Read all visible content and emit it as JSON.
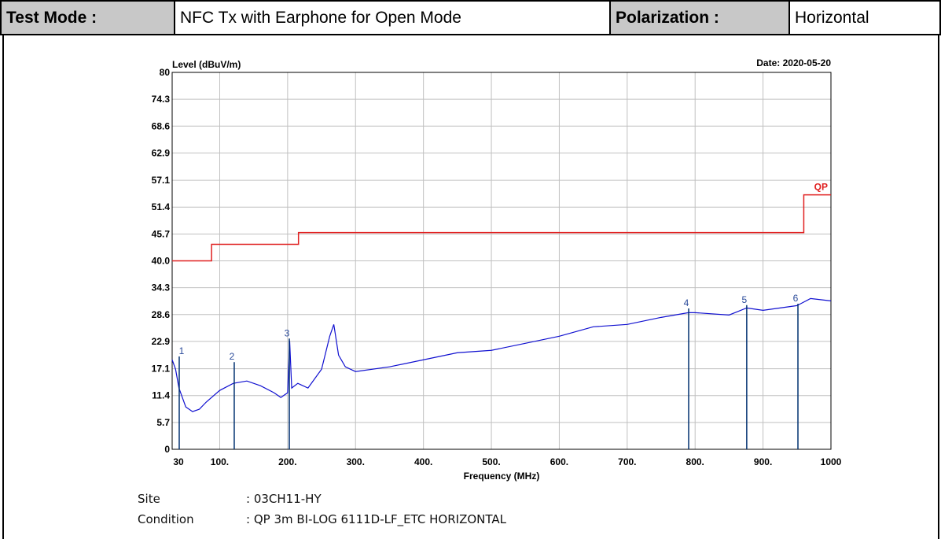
{
  "header": {
    "cells": [
      "Test Mode :",
      "NFC Tx with Earphone for Open Mode",
      "Polarization :",
      "Horizontal"
    ]
  },
  "chart_data": {
    "type": "line",
    "y_label": "Level (dBuV/m)",
    "date": "Date: 2020-05-20",
    "x_label": "Frequency (MHz)",
    "xlim": [
      30,
      1000
    ],
    "xticks": [
      30,
      {
        "value": 100,
        "label": "100."
      },
      {
        "value": 200,
        "label": "200."
      },
      {
        "value": 300,
        "label": "300."
      },
      {
        "value": 400,
        "label": "400."
      },
      {
        "value": 500,
        "label": "500."
      },
      {
        "value": 600,
        "label": "600."
      },
      {
        "value": 700,
        "label": "700."
      },
      {
        "value": 800,
        "label": "800."
      },
      {
        "value": 900,
        "label": "900."
      },
      1000
    ],
    "ylim": [
      0,
      80
    ],
    "yticks": [
      0,
      5.7,
      11.4,
      17.1,
      22.9,
      28.6,
      34.3,
      {
        "value": 40,
        "label": "40.0"
      },
      45.7,
      51.4,
      57.1,
      62.9,
      68.6,
      74.3,
      80
    ],
    "grid": true,
    "series": [
      {
        "name": "QP",
        "color": "#e02020",
        "x": [
          30,
          88,
          88,
          216,
          216,
          960,
          960,
          1000
        ],
        "values": [
          40,
          40,
          43.5,
          43.5,
          46,
          46,
          54,
          54
        ]
      },
      {
        "color": "#1010d0",
        "x": [
          30,
          35,
          40,
          50,
          60,
          70,
          80,
          100,
          120,
          140,
          160,
          180,
          190,
          200,
          203,
          206,
          215,
          230,
          250,
          262,
          268,
          275,
          285,
          300,
          350,
          400,
          450,
          500,
          550,
          600,
          650,
          700,
          750,
          790,
          800,
          850,
          876,
          900,
          950,
          970,
          1000
        ],
        "values": [
          19,
          17,
          13,
          9,
          8,
          8.5,
          10,
          12.5,
          14,
          14.5,
          13.5,
          12,
          11,
          12,
          23,
          13,
          14,
          13,
          17,
          24,
          26.5,
          20,
          17.5,
          16.5,
          17.5,
          19,
          20.5,
          21,
          22.5,
          24,
          26,
          26.5,
          28,
          29,
          29,
          28.5,
          30,
          29.5,
          30.5,
          32,
          31.5
        ]
      }
    ],
    "markers": {
      "color": "#003070",
      "labels": [
        "1",
        "2",
        "3",
        "4",
        "5",
        "6"
      ],
      "x": [
        40.4,
        121.4,
        202.5,
        790.5,
        876,
        951.4
      ],
      "values": [
        19.7,
        18.5,
        23.5,
        29.9,
        30.6,
        30.9
      ]
    }
  },
  "footer": {
    "rows": [
      [
        "Site",
        ": 03CH11-HY"
      ],
      [
        "Condition",
        ": QP 3m BI-LOG 6111D-LF_ETC HORIZONTAL"
      ]
    ]
  }
}
